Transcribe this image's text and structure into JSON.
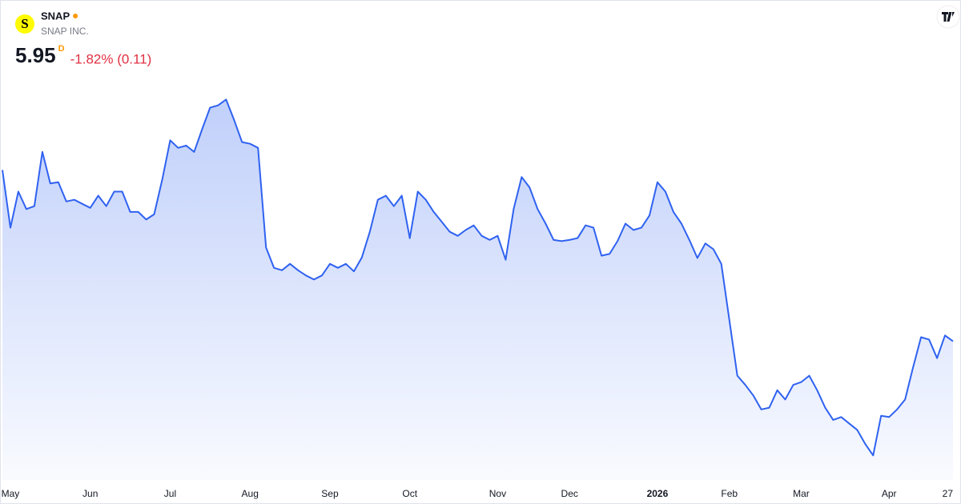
{
  "chart_data": {
    "type": "area",
    "logo": "S",
    "symbol": "SNAP",
    "company": "SNAP INC.",
    "price": 5.95,
    "interval": "D",
    "change": "-1.82% (0.11)",
    "color": "#2f62f0",
    "categories": [
      null,
      "May",
      null,
      null,
      null,
      null,
      null,
      null,
      null,
      null,
      null,
      "Jun",
      null,
      null,
      null,
      null,
      null,
      null,
      null,
      null,
      null,
      "Jul",
      null,
      null,
      null,
      null,
      null,
      null,
      null,
      null,
      null,
      "Aug",
      null,
      null,
      null,
      null,
      null,
      null,
      null,
      null,
      null,
      "Sep",
      null,
      null,
      null,
      null,
      null,
      null,
      null,
      null,
      null,
      "Oct",
      null,
      null,
      null,
      null,
      null,
      null,
      null,
      null,
      null,
      null,
      "Nov",
      null,
      null,
      null,
      null,
      null,
      null,
      null,
      null,
      "Dec",
      null,
      null,
      null,
      null,
      null,
      null,
      null,
      null,
      null,
      null,
      "2026",
      null,
      null,
      null,
      null,
      null,
      null,
      null,
      null,
      "Feb",
      null,
      null,
      null,
      null,
      null,
      null,
      null,
      null,
      "Mar",
      null,
      null,
      null,
      null,
      null,
      null,
      null,
      null,
      null,
      null,
      "Apr",
      null,
      null,
      null,
      null,
      null,
      null,
      null,
      "27"
    ],
    "values": [
      8.89,
      7.9,
      8.52,
      8.22,
      8.27,
      9.2,
      8.66,
      8.68,
      8.35,
      8.38,
      8.31,
      8.24,
      8.45,
      8.27,
      8.52,
      8.52,
      8.17,
      8.17,
      8.04,
      8.13,
      8.72,
      9.4,
      9.27,
      9.31,
      9.2,
      9.59,
      9.96,
      10.0,
      10.1,
      9.75,
      9.37,
      9.34,
      9.27,
      7.56,
      7.21,
      7.17,
      7.28,
      7.17,
      7.08,
      7.01,
      7.08,
      7.28,
      7.21,
      7.28,
      7.15,
      7.39,
      7.83,
      8.38,
      8.45,
      8.27,
      8.45,
      7.72,
      8.52,
      8.38,
      8.17,
      8.0,
      7.83,
      7.76,
      7.86,
      7.94,
      7.76,
      7.69,
      7.76,
      7.35,
      8.22,
      8.77,
      8.59,
      8.22,
      7.97,
      7.69,
      7.67,
      7.69,
      7.72,
      7.94,
      7.9,
      7.42,
      7.45,
      7.67,
      7.97,
      7.86,
      7.9,
      8.11,
      8.68,
      8.52,
      8.17,
      7.97,
      7.69,
      7.38,
      7.63,
      7.53,
      7.28,
      6.32,
      5.36,
      5.2,
      5.02,
      4.78,
      4.81,
      5.11,
      4.95,
      5.2,
      5.25,
      5.36,
      5.11,
      4.81,
      4.6,
      4.65,
      4.54,
      4.43,
      4.19,
      3.99,
      4.67,
      4.65,
      4.78,
      4.95,
      5.5,
      6.02,
      5.98,
      5.66,
      6.05,
      5.95
    ],
    "ylim": [
      3.5,
      10.6
    ]
  }
}
